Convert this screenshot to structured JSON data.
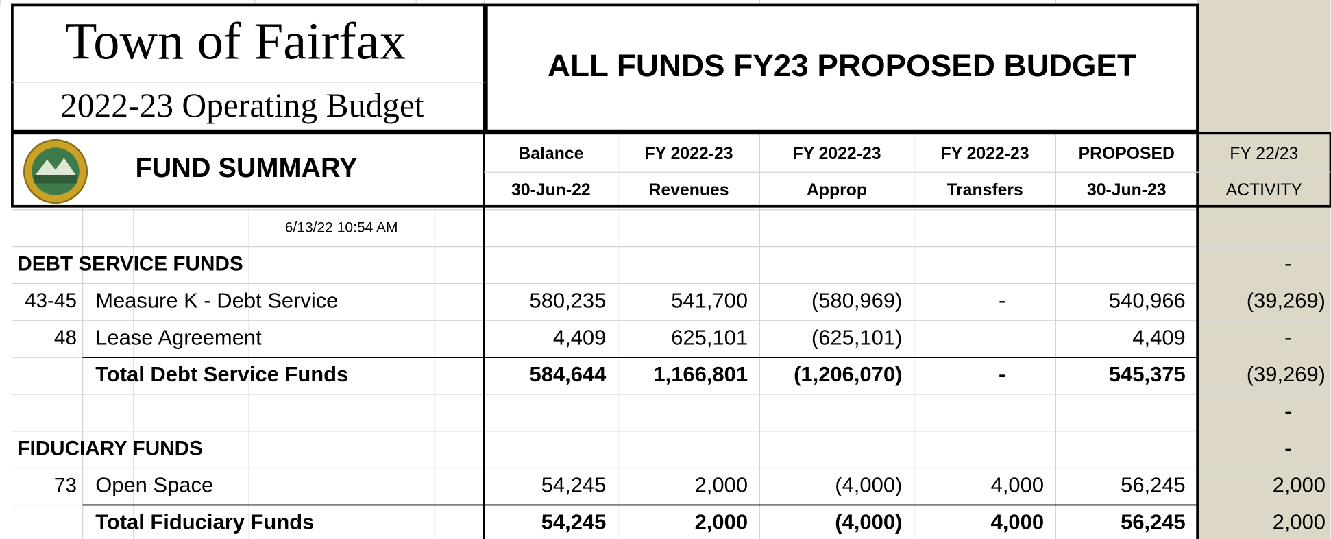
{
  "header": {
    "title": "Town of Fairfax",
    "subtitle": "2022-23 Operating Budget",
    "main_title": "ALL FUNDS FY23 PROPOSED BUDGET"
  },
  "table": {
    "summary_label": "FUND SUMMARY",
    "columns": [
      [
        "Balance",
        "30-Jun-22"
      ],
      [
        "FY 2022-23",
        "Revenues"
      ],
      [
        "FY 2022-23",
        "Approp"
      ],
      [
        "FY 2022-23",
        "Transfers"
      ],
      [
        "PROPOSED",
        "30-Jun-23"
      ],
      [
        "FY 22/23",
        "ACTIVITY"
      ]
    ],
    "timestamp": "6/13/22 10:54 AM",
    "rows": [
      {
        "name": "DEBT SERVICE FUNDS",
        "cells": [
          null,
          null,
          null,
          null,
          null,
          "-"
        ]
      },
      {
        "code": "43-45",
        "name": "Measure K - Debt Service",
        "cells": [
          "580,235",
          "541,700",
          "(580,969)",
          "-",
          "540,966",
          "(39,269)"
        ]
      },
      {
        "code": "48",
        "name": "Lease Agreement",
        "cells": [
          "4,409",
          "625,101",
          "(625,101)",
          null,
          "4,409",
          "-"
        ]
      },
      {
        "name": "Total Debt Service Funds",
        "cells": [
          "584,644",
          "1,166,801",
          "(1,206,070)",
          "-",
          "545,375",
          "(39,269)"
        ]
      },
      {
        "cells": [
          null,
          null,
          null,
          null,
          null,
          "-"
        ]
      },
      {
        "name": "FIDUCIARY FUNDS",
        "cells": [
          null,
          null,
          null,
          null,
          null,
          "-"
        ]
      },
      {
        "code": "73",
        "name": "Open Space",
        "cells": [
          "54,245",
          "2,000",
          "(4,000)",
          "4,000",
          "56,245",
          "2,000"
        ]
      },
      {
        "name": "Total Fiduciary Funds",
        "cells": [
          "54,245",
          "2,000",
          "(4,000)",
          "4,000",
          "56,245",
          "2,000"
        ]
      }
    ]
  }
}
